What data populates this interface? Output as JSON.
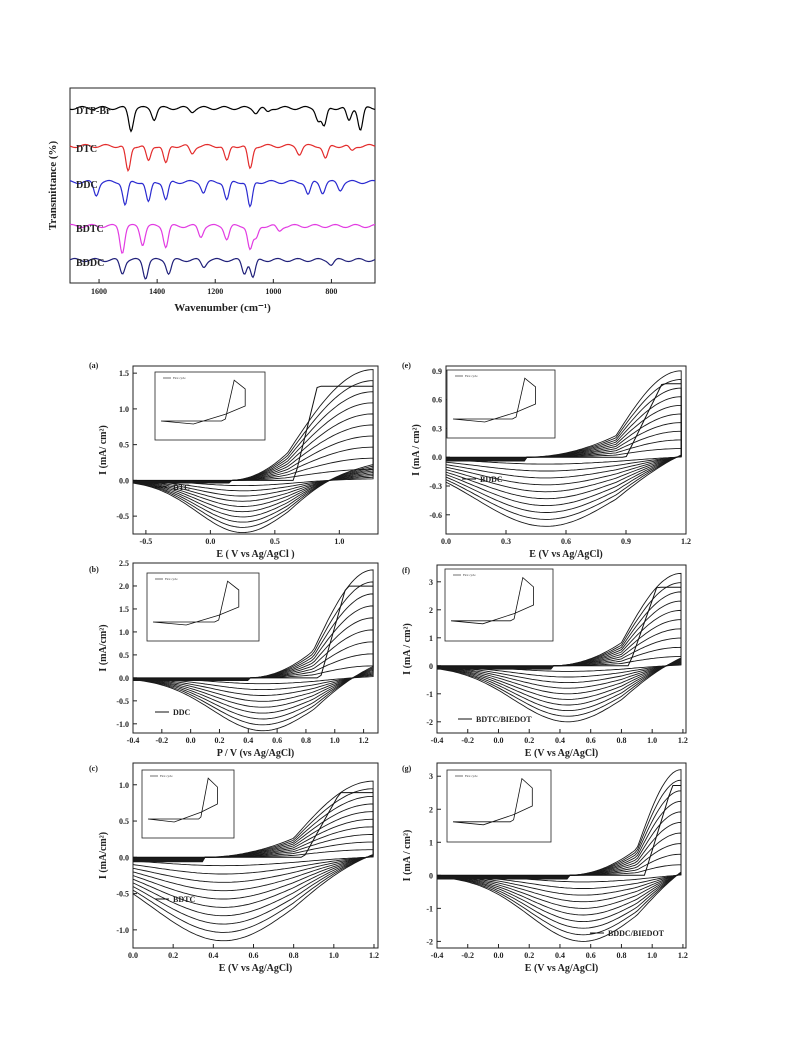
{
  "chart_data": [
    {
      "type": "line",
      "panel": "",
      "xlabel": "Wavenumber (cm⁻¹)",
      "ylabel": "Transmittance (%)",
      "xlim": [
        1700,
        650
      ],
      "xticks": [
        1600,
        1400,
        1200,
        1000,
        800
      ],
      "series": [
        {
          "name": "DTP-Br",
          "color": "#000000",
          "peaks": [
            [
              1490,
              1.0
            ],
            [
              1410,
              0.5
            ],
            [
              1280,
              0.15
            ],
            [
              1060,
              0.2
            ],
            [
              1020,
              0.2
            ],
            [
              845,
              0.55
            ],
            [
              825,
              0.85
            ],
            [
              740,
              0.6
            ],
            [
              700,
              1.0
            ]
          ]
        },
        {
          "name": "DTC",
          "color": "#e32c2c",
          "peaks": [
            [
              1500,
              1.0
            ],
            [
              1430,
              0.6
            ],
            [
              1370,
              0.7
            ],
            [
              1280,
              0.3
            ],
            [
              1160,
              0.6
            ],
            [
              1080,
              0.9
            ],
            [
              910,
              0.3
            ],
            [
              820,
              0.5
            ],
            [
              730,
              0.2
            ]
          ]
        },
        {
          "name": "DDC",
          "color": "#2b2bd0",
          "peaks": [
            [
              1610,
              0.5
            ],
            [
              1510,
              0.9
            ],
            [
              1430,
              0.8
            ],
            [
              1370,
              0.7
            ],
            [
              1240,
              0.4
            ],
            [
              1160,
              0.7
            ],
            [
              1080,
              1.0
            ],
            [
              880,
              0.5
            ],
            [
              830,
              0.4
            ],
            [
              770,
              0.3
            ]
          ]
        },
        {
          "name": "BDTC",
          "color": "#e23be2",
          "peaks": [
            [
              1520,
              1.0
            ],
            [
              1450,
              0.7
            ],
            [
              1370,
              0.8
            ],
            [
              1250,
              0.4
            ],
            [
              1160,
              0.5
            ],
            [
              1080,
              0.9
            ],
            [
              1060,
              0.5
            ],
            [
              980,
              0.2
            ]
          ]
        },
        {
          "name": "BDDC",
          "color": "#20207a",
          "peaks": [
            [
              1520,
              0.6
            ],
            [
              1440,
              0.8
            ],
            [
              1360,
              0.6
            ],
            [
              1240,
              0.3
            ],
            [
              1100,
              0.6
            ],
            [
              1070,
              0.8
            ],
            [
              800,
              0.2
            ]
          ]
        }
      ]
    },
    {
      "type": "line",
      "panel": "(a)",
      "legend": "DTC",
      "inset_legend": "First cycle",
      "xlabel": "E ( V vs Ag/AgCl )",
      "ylabel": "I (mA/ cm²)",
      "xlim": [
        -0.6,
        1.3
      ],
      "ylim": [
        -0.75,
        1.6
      ],
      "xticks": [
        -0.5,
        0.0,
        0.5,
        1.0
      ],
      "yticks": [
        -0.5,
        0.0,
        0.5,
        1.0,
        1.5
      ],
      "cycles": 10,
      "onset": 0.6,
      "peak_max": 1.55,
      "cathodic_peak": -0.73,
      "x_start": -0.6
    },
    {
      "type": "line",
      "panel": "(b)",
      "legend": "DDC",
      "inset_legend": "First cycle",
      "xlabel": "P / V (vs Ag/AgCl)",
      "ylabel": "I (mA/cm²)",
      "xlim": [
        -0.4,
        1.3
      ],
      "ylim": [
        -1.2,
        2.5
      ],
      "xticks": [
        -0.4,
        -0.2,
        0.0,
        0.2,
        0.4,
        0.6,
        0.8,
        1.0,
        1.2
      ],
      "yticks": [
        -1.0,
        -0.5,
        0.0,
        0.5,
        1.0,
        1.5,
        2.0,
        2.5
      ],
      "cycles": 9,
      "onset": 0.85,
      "peak_max": 2.35,
      "cathodic_peak": -1.15,
      "x_start": -0.4
    },
    {
      "type": "line",
      "panel": "(c)",
      "legend": "BDTC",
      "inset_legend": "First cycle",
      "xlabel": "E (V vs Ag/AgCl)",
      "ylabel": "I (mA/cm²)",
      "xlim": [
        0.0,
        1.22
      ],
      "ylim": [
        -1.25,
        1.3
      ],
      "xticks": [
        0.0,
        0.2,
        0.4,
        0.6,
        0.8,
        1.0,
        1.2
      ],
      "yticks": [
        -1.0,
        -0.5,
        0.0,
        0.5,
        1.0
      ],
      "cycles": 10,
      "onset": 0.8,
      "peak_max": 1.05,
      "cathodic_peak": -1.15,
      "x_start": 0.0
    },
    {
      "type": "line",
      "panel": "(e)",
      "legend": "BDDC",
      "inset_legend": "First cycle",
      "xlabel": "E (V vs Ag/AgCl)",
      "ylabel": "I (mA / cm²)",
      "xlim": [
        0.0,
        1.2
      ],
      "ylim": [
        -0.8,
        0.95
      ],
      "xticks": [
        0.0,
        0.3,
        0.6,
        0.9,
        1.2
      ],
      "yticks": [
        -0.6,
        -0.3,
        0.0,
        0.3,
        0.6,
        0.9
      ],
      "cycles": 10,
      "onset": 0.85,
      "peak_max": 0.9,
      "cathodic_peak": -0.72,
      "x_start": 0.0
    },
    {
      "type": "line",
      "panel": "(f)",
      "legend": "BDTC/BIEDOT",
      "inset_legend": "First cycle",
      "xlabel": "E (V vs Ag/AgCl)",
      "ylabel": "I (mA / cm²)",
      "xlim": [
        -0.4,
        1.22
      ],
      "ylim": [
        -2.4,
        3.6
      ],
      "xticks": [
        -0.4,
        -0.2,
        0.0,
        0.2,
        0.4,
        0.6,
        0.8,
        1.0,
        1.2
      ],
      "yticks": [
        -2,
        -1,
        0,
        1,
        2,
        3
      ],
      "cycles": 10,
      "onset": 0.8,
      "peak_max": 3.3,
      "cathodic_peak": -2.0,
      "x_start": -0.4
    },
    {
      "type": "line",
      "panel": "(g)",
      "legend": "BDDC/BIEDOT",
      "inset_legend": "First cycle",
      "xlabel": "E (V vs Ag/AgCl)",
      "ylabel": "I (mA / cm²)",
      "xlim": [
        -0.4,
        1.22
      ],
      "ylim": [
        -2.2,
        3.4
      ],
      "xticks": [
        -0.4,
        -0.2,
        0.0,
        0.2,
        0.4,
        0.6,
        0.8,
        1.0,
        1.2
      ],
      "yticks": [
        -2,
        -1,
        0,
        1,
        2,
        3
      ],
      "cycles": 10,
      "onset": 0.9,
      "peak_max": 3.2,
      "cathodic_peak": -2.0,
      "x_start": -0.4
    }
  ]
}
